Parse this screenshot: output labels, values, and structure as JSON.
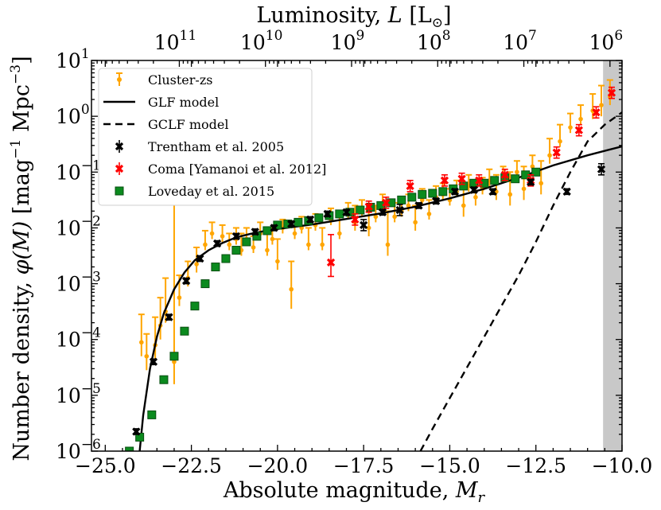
{
  "chart_data": {
    "type": "scatter",
    "title": "",
    "xlabel": "Absolute magnitude, M_r",
    "xlabel_parts": {
      "main": "Absolute magnitude, ",
      "sym": "M",
      "sub": "r"
    },
    "ylabel": "Number density, φ(M) [mag⁻¹ Mpc⁻³]",
    "ylabel_parts": {
      "main": "Number density, ",
      "phi": "φ(M)",
      "unit_pre": "[mag",
      "exp1": "−1",
      "unit_mid": " Mpc",
      "exp2": "−3",
      "unit_post": "]"
    },
    "top_xlabel": "Luminosity, L [L⊙]",
    "top_xlabel_parts": {
      "main": "Luminosity, ",
      "sym": "L",
      "unit": "[L",
      "sun": "⊙",
      "close": "]"
    },
    "xlim": [
      -25.4,
      -10.0
    ],
    "ylim_log10": [
      -6,
      1
    ],
    "x_ticks": [
      -25.0,
      -22.5,
      -20.0,
      -17.5,
      -15.0,
      -12.5,
      -10.0
    ],
    "x_tick_labels": [
      "−25.0",
      "−22.5",
      "−20.0",
      "−17.5",
      "−15.0",
      "−12.5",
      "−10.0"
    ],
    "y_ticks_exp": [
      -6,
      -5,
      -4,
      -3,
      -2,
      -1,
      0,
      1
    ],
    "y_tick_labels": [
      "−6",
      "−5",
      "−4",
      "−3",
      "−2",
      "−1",
      "0",
      "1"
    ],
    "top_ticks_exp": [
      11,
      10,
      9,
      8,
      7,
      6
    ],
    "top_tick_labels": [
      "11",
      "10",
      "9",
      "8",
      "7",
      "6"
    ],
    "tick_base": "10",
    "top_axis_mag_offset": 4.65,
    "shaded_region": {
      "x_from": -10.55,
      "x_to": -10.0,
      "color": "#c8c8c8"
    },
    "legend_position": "upper-left",
    "legend": [
      {
        "label": "Cluster-zs",
        "style": "orange-errorbar"
      },
      {
        "label": "GLF model",
        "style": "solid-line"
      },
      {
        "label": "GCLF model",
        "style": "dashed-line"
      },
      {
        "label": "Trentham et al. 2005",
        "style": "black-x"
      },
      {
        "label": "Coma [Yamanoi et al. 2012]",
        "style": "red-x"
      },
      {
        "label": "Loveday et al. 2015",
        "style": "green-square"
      }
    ],
    "series": [
      {
        "name": "Cluster-zs",
        "color": "#ffa500",
        "points": [
          [
            -23.95,
            -4.05,
            0.25,
            0.5
          ],
          [
            -23.8,
            -4.3,
            0.25,
            0.4
          ],
          [
            -23.55,
            -4.1,
            0.25,
            0.5
          ],
          [
            -23.4,
            -3.75,
            0.25,
            0.5
          ],
          [
            -23.25,
            -3.5,
            0.2,
            0.6
          ],
          [
            -23.0,
            -4.4,
            0.4,
            3
          ],
          [
            -22.85,
            -3.25,
            0.15,
            0.4
          ],
          [
            -22.6,
            -2.9,
            0.15,
            0.3
          ],
          [
            -22.35,
            -2.65,
            0.15,
            0.3
          ],
          [
            -22.1,
            -2.3,
            0.1,
            0.25
          ],
          [
            -21.9,
            -2.1,
            0.1,
            0.2
          ],
          [
            -21.6,
            -2.15,
            0.1,
            0.2
          ],
          [
            -21.4,
            -2.3,
            0.1,
            0.2
          ],
          [
            -21.2,
            -2.2,
            0.1,
            0.2
          ],
          [
            -21.05,
            -2.4,
            0.1,
            0.3
          ],
          [
            -20.9,
            -2.2,
            0.1,
            0.2
          ],
          [
            -20.7,
            -2.35,
            0.1,
            0.2
          ],
          [
            -20.5,
            -2.1,
            0.1,
            0.2
          ],
          [
            -20.3,
            -2.4,
            0.1,
            0.3
          ],
          [
            -20.15,
            -2.2,
            0.1,
            0.2
          ],
          [
            -20.0,
            -2.6,
            0.15,
            0.4
          ],
          [
            -19.85,
            -2.0,
            0.1,
            0.15
          ],
          [
            -19.6,
            -3.1,
            0.35,
            0.5
          ],
          [
            -19.5,
            -2.1,
            0.1,
            0.2
          ],
          [
            -19.3,
            -2.0,
            0.1,
            0.2
          ],
          [
            -19.1,
            -2.3,
            0.1,
            0.3
          ],
          [
            -18.9,
            -1.95,
            0.1,
            0.2
          ],
          [
            -18.7,
            -2.3,
            0.1,
            0.3
          ],
          [
            -18.45,
            -1.85,
            0.1,
            0.2
          ],
          [
            -18.2,
            -2.1,
            0.1,
            0.3
          ],
          [
            -17.95,
            -1.75,
            0.1,
            0.2
          ],
          [
            -17.75,
            -1.9,
            0.15,
            0.3
          ],
          [
            -17.55,
            -1.7,
            0.1,
            0.2
          ],
          [
            -17.35,
            -2.0,
            0.15,
            0.3
          ],
          [
            -17.15,
            -1.8,
            0.1,
            0.2
          ],
          [
            -16.95,
            -1.6,
            0.1,
            0.2
          ],
          [
            -16.8,
            -2.3,
            0.2,
            0.6
          ],
          [
            -16.6,
            -1.8,
            0.1,
            0.25
          ],
          [
            -16.4,
            -1.7,
            0.1,
            0.2
          ],
          [
            -16.2,
            -1.6,
            0.1,
            0.2
          ],
          [
            -16.0,
            -1.9,
            0.15,
            0.3
          ],
          [
            -15.8,
            -1.5,
            0.1,
            0.2
          ],
          [
            -15.6,
            -1.75,
            0.1,
            0.25
          ],
          [
            -15.4,
            -1.45,
            0.1,
            0.2
          ],
          [
            -15.2,
            -1.4,
            0.1,
            0.2
          ],
          [
            -15.0,
            -1.5,
            0.1,
            0.2
          ],
          [
            -14.8,
            -1.35,
            0.1,
            0.2
          ],
          [
            -14.6,
            -1.6,
            0.2,
            0.4
          ],
          [
            -14.45,
            -1.25,
            0.1,
            0.2
          ],
          [
            -14.25,
            -1.45,
            0.15,
            0.3
          ],
          [
            -14.05,
            -1.3,
            0.1,
            0.2
          ],
          [
            -13.85,
            -1.15,
            0.1,
            0.2
          ],
          [
            -13.65,
            -1.35,
            0.15,
            0.3
          ],
          [
            -13.45,
            -1.1,
            0.1,
            0.2
          ],
          [
            -13.25,
            -1.4,
            0.2,
            0.4
          ],
          [
            -13.05,
            -1.0,
            0.1,
            0.2
          ],
          [
            -12.85,
            -1.3,
            0.2,
            0.4
          ],
          [
            -12.6,
            -0.9,
            0.1,
            0.2
          ],
          [
            -12.35,
            -1.2,
            0.2,
            0.4
          ],
          [
            -12.1,
            -0.7,
            0.15,
            0.3
          ],
          [
            -11.8,
            -0.45,
            0.1,
            0.3
          ],
          [
            -11.5,
            -0.2,
            0.1,
            0.25
          ],
          [
            -11.2,
            -0.05,
            0.1,
            0.25
          ],
          [
            -10.85,
            0.1,
            0.15,
            0.3
          ],
          [
            -10.6,
            0.2,
            0.2,
            0.35
          ],
          [
            -10.35,
            0.35,
            0.15,
            0.3
          ]
        ]
      },
      {
        "name": "GLF model",
        "color": "#000000",
        "points": [
          [
            -24.0,
            -6.0
          ],
          [
            -23.9,
            -5.36
          ],
          [
            -23.7,
            -4.52
          ],
          [
            -23.5,
            -3.95
          ],
          [
            -23.3,
            -3.53
          ],
          [
            -23.0,
            -3.1
          ],
          [
            -22.7,
            -2.8
          ],
          [
            -22.4,
            -2.58
          ],
          [
            -22.0,
            -2.4
          ],
          [
            -21.6,
            -2.27
          ],
          [
            -21.2,
            -2.17
          ],
          [
            -20.8,
            -2.11
          ],
          [
            -20.4,
            -2.06
          ],
          [
            -20.0,
            -2.02
          ],
          [
            -19.0,
            -1.94
          ],
          [
            -18.0,
            -1.84
          ],
          [
            -17.0,
            -1.74
          ],
          [
            -16.0,
            -1.62
          ],
          [
            -15.0,
            -1.47
          ],
          [
            -14.0,
            -1.3
          ],
          [
            -13.0,
            -1.1
          ],
          [
            -12.0,
            -0.88
          ],
          [
            -11.0,
            -0.7
          ],
          [
            -10.0,
            -0.54
          ]
        ]
      },
      {
        "name": "GCLF model",
        "color": "#000000",
        "points": [
          [
            -15.85,
            -6.0
          ],
          [
            -15.5,
            -5.6
          ],
          [
            -15.0,
            -5.05
          ],
          [
            -14.5,
            -4.5
          ],
          [
            -14.0,
            -3.95
          ],
          [
            -13.5,
            -3.4
          ],
          [
            -13.0,
            -2.85
          ],
          [
            -12.5,
            -2.25
          ],
          [
            -12.0,
            -1.6
          ],
          [
            -11.5,
            -1.0
          ],
          [
            -11.0,
            -0.45
          ],
          [
            -10.5,
            -0.15
          ],
          [
            -10.0,
            0.07
          ]
        ]
      },
      {
        "name": "Trentham et al. 2005",
        "color": "#000000",
        "points": [
          [
            -24.1,
            -5.65,
            0.05,
            0.05
          ],
          [
            -23.6,
            -4.4,
            0.05,
            0.05
          ],
          [
            -23.15,
            -3.6,
            0.05,
            0.05
          ],
          [
            -22.65,
            -2.95,
            0.05,
            0.05
          ],
          [
            -22.25,
            -2.55,
            0.05,
            0.05
          ],
          [
            -21.75,
            -2.28,
            0.05,
            0.05
          ],
          [
            -21.2,
            -2.15,
            0.05,
            0.05
          ],
          [
            -20.65,
            -2.07,
            0.05,
            0.05
          ],
          [
            -20.1,
            -2.0,
            0.05,
            0.05
          ],
          [
            -19.6,
            -1.93,
            0.05,
            0.05
          ],
          [
            -19.05,
            -1.85,
            0.05,
            0.05
          ],
          [
            -18.55,
            -1.75,
            0.05,
            0.05
          ],
          [
            -18.0,
            -1.72,
            0.05,
            0.05
          ],
          [
            -17.5,
            -1.95,
            0.1,
            0.1
          ],
          [
            -16.95,
            -1.72,
            0.05,
            0.05
          ],
          [
            -16.45,
            -1.68,
            0.1,
            0.1
          ],
          [
            -15.9,
            -1.6,
            0.05,
            0.05
          ],
          [
            -15.4,
            -1.52,
            0.05,
            0.05
          ],
          [
            -14.85,
            -1.35,
            0.05,
            0.05
          ],
          [
            -14.3,
            -1.32,
            0.05,
            0.05
          ],
          [
            -13.75,
            -1.35,
            0.05,
            0.05
          ],
          [
            -12.65,
            -1.18,
            0.05,
            0.05
          ],
          [
            -11.6,
            -1.35,
            0.05,
            0.05
          ],
          [
            -10.6,
            -0.95,
            0.1,
            0.1
          ]
        ]
      },
      {
        "name": "Coma [Yamanoi et al. 2012]",
        "color": "#ff0000",
        "points": [
          [
            -18.45,
            -2.62,
            0.25,
            0.5
          ],
          [
            -17.75,
            -1.85,
            0.1,
            0.1
          ],
          [
            -17.35,
            -1.62,
            0.1,
            0.1
          ],
          [
            -16.85,
            -1.55,
            0.1,
            0.1
          ],
          [
            -16.15,
            -1.25,
            0.1,
            0.1
          ],
          [
            -15.15,
            -1.15,
            0.1,
            0.1
          ],
          [
            -14.65,
            -1.12,
            0.1,
            0.1
          ],
          [
            -14.15,
            -1.15,
            0.1,
            0.1
          ],
          [
            -13.4,
            -1.05,
            0.1,
            0.1
          ],
          [
            -12.65,
            -1.15,
            0.1,
            0.1
          ],
          [
            -11.9,
            -0.65,
            0.1,
            0.1
          ],
          [
            -11.25,
            -0.25,
            0.1,
            0.1
          ],
          [
            -10.75,
            0.07,
            0.1,
            0.1
          ],
          [
            -10.3,
            0.42,
            0.1,
            0.1
          ]
        ]
      },
      {
        "name": "Loveday et al. 2015",
        "color": "#0b8a1e",
        "points": [
          [
            -24.3,
            -6.0
          ],
          [
            -24.0,
            -5.75
          ],
          [
            -23.65,
            -5.35
          ],
          [
            -23.3,
            -4.72
          ],
          [
            -23.0,
            -4.3
          ],
          [
            -22.7,
            -3.85
          ],
          [
            -22.4,
            -3.4
          ],
          [
            -22.1,
            -3.0
          ],
          [
            -21.8,
            -2.7
          ],
          [
            -21.5,
            -2.55
          ],
          [
            -21.2,
            -2.4
          ],
          [
            -20.9,
            -2.25
          ],
          [
            -20.6,
            -2.15
          ],
          [
            -20.3,
            -2.05
          ],
          [
            -20.0,
            -1.95
          ],
          [
            -19.7,
            -1.93
          ],
          [
            -19.4,
            -1.9
          ],
          [
            -19.1,
            -1.87
          ],
          [
            -18.8,
            -1.82
          ],
          [
            -18.5,
            -1.78
          ],
          [
            -18.2,
            -1.75
          ],
          [
            -17.9,
            -1.72
          ],
          [
            -17.6,
            -1.68
          ],
          [
            -17.3,
            -1.63
          ],
          [
            -17.0,
            -1.6
          ],
          [
            -16.7,
            -1.55
          ],
          [
            -16.4,
            -1.5
          ],
          [
            -16.1,
            -1.45
          ],
          [
            -15.8,
            -1.4
          ],
          [
            -15.5,
            -1.38
          ],
          [
            -15.2,
            -1.35
          ],
          [
            -14.9,
            -1.3
          ],
          [
            -14.6,
            -1.25
          ],
          [
            -14.3,
            -1.2
          ],
          [
            -14.0,
            -1.2
          ],
          [
            -13.7,
            -1.15
          ],
          [
            -13.4,
            -1.1
          ],
          [
            -13.1,
            -1.12
          ],
          [
            -12.8,
            -1.05
          ],
          [
            -12.5,
            -1.0
          ]
        ]
      }
    ]
  }
}
